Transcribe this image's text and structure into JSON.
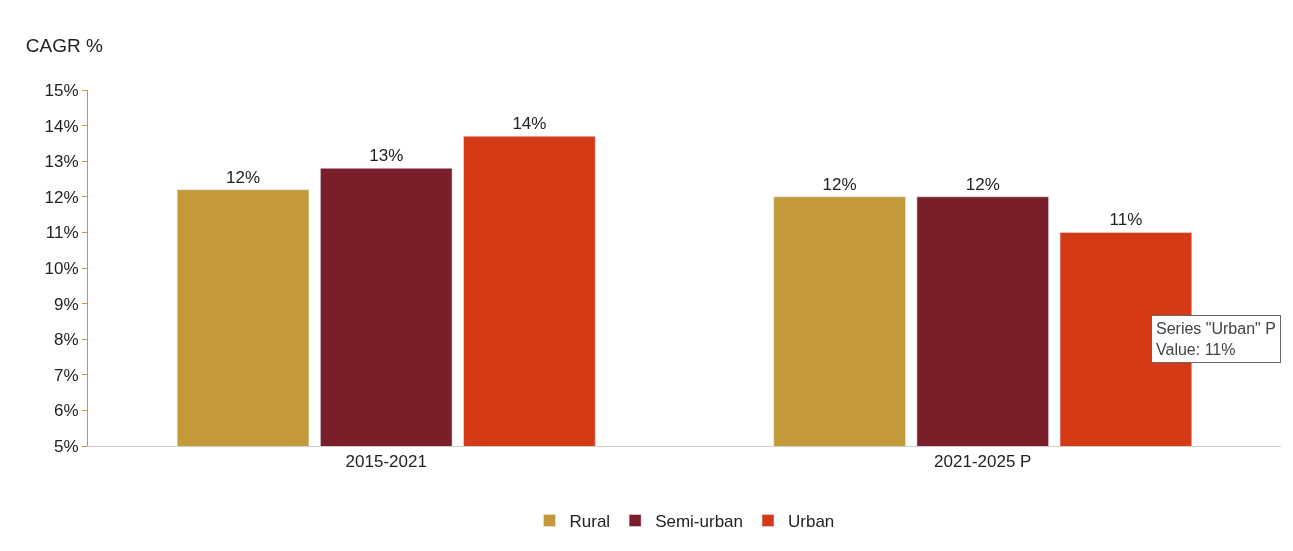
{
  "chart_data": {
    "type": "bar",
    "title": "CAGR %",
    "categories": [
      "2015-2021",
      "2021-2025 P"
    ],
    "series": [
      {
        "name": "Rural",
        "color": "#c4993a",
        "values": [
          12.2,
          12.0
        ],
        "value_labels": [
          "12%",
          "12%"
        ]
      },
      {
        "name": "Semi-urban",
        "color": "#7a1e2a",
        "values": [
          12.8,
          12.0
        ],
        "value_labels": [
          "13%",
          "12%"
        ]
      },
      {
        "name": "Urban",
        "color": "#d43a16",
        "values": [
          13.7,
          11.0
        ],
        "value_labels": [
          "14%",
          "11%"
        ]
      }
    ],
    "ylim": [
      5,
      15
    ],
    "yticks": [
      {
        "value": 5,
        "label": "5%"
      },
      {
        "value": 6,
        "label": "6%"
      },
      {
        "value": 7,
        "label": "7%"
      },
      {
        "value": 8,
        "label": "8%"
      },
      {
        "value": 9,
        "label": "9%"
      },
      {
        "value": 10,
        "label": "10%"
      },
      {
        "value": 11,
        "label": "11%"
      },
      {
        "value": 12,
        "label": "12%"
      },
      {
        "value": 13,
        "label": "13%"
      },
      {
        "value": 14,
        "label": "14%"
      },
      {
        "value": 15,
        "label": "15%"
      }
    ],
    "legend": "bottom",
    "annotations": [
      "Series \"Urban\" P",
      "Value: 11%"
    ]
  }
}
